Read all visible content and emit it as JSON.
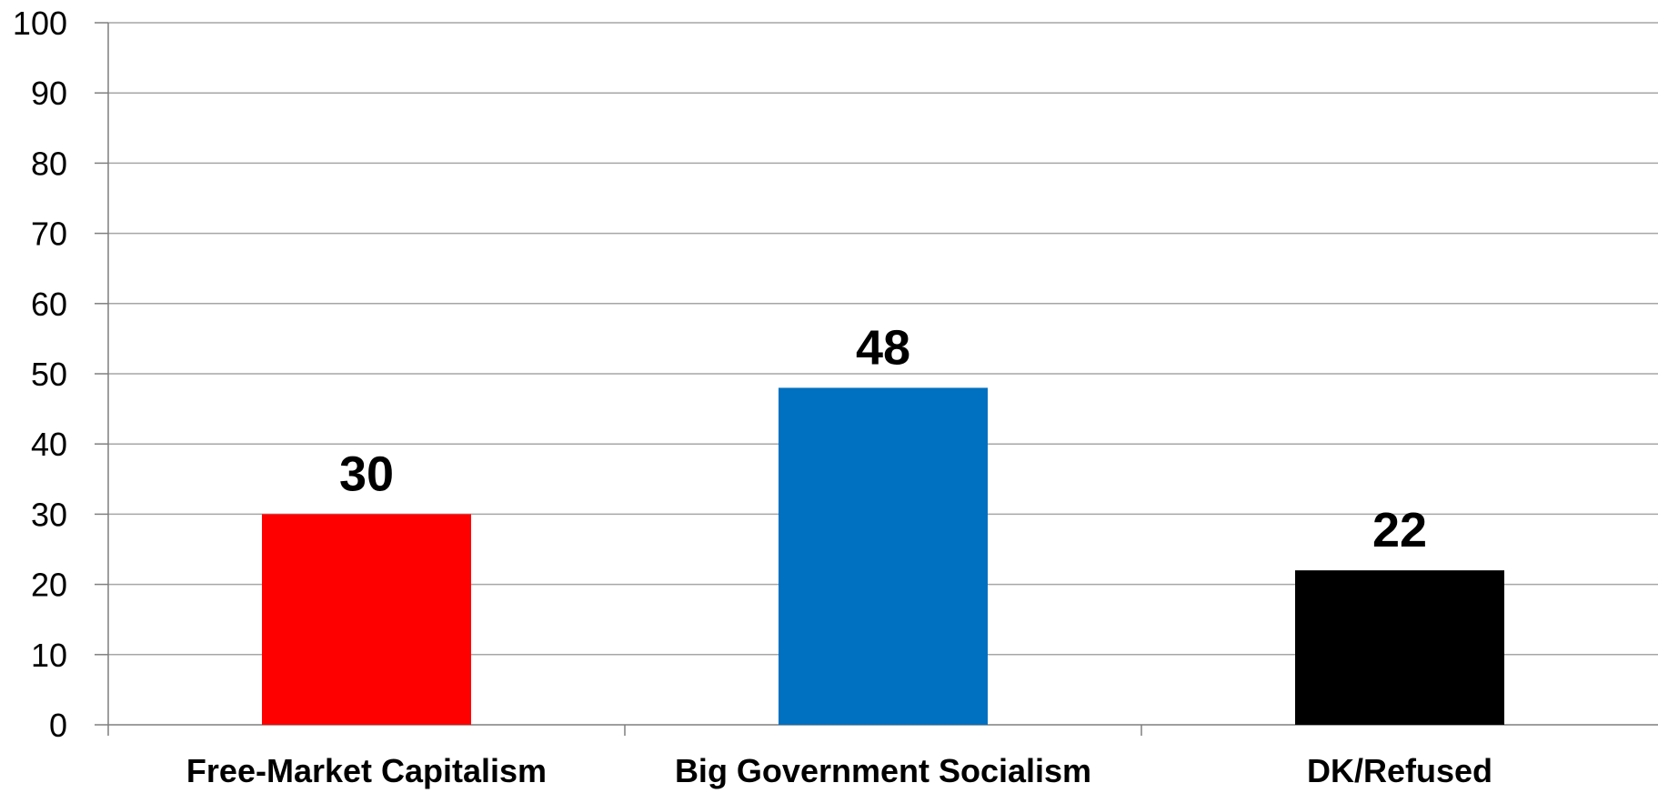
{
  "chart_data": {
    "type": "bar",
    "title": "",
    "xlabel": "",
    "ylabel": "",
    "categories": [
      "Free-Market Capitalism",
      "Big Government Socialism",
      "DK/Refused"
    ],
    "values": [
      30,
      48,
      22
    ],
    "data_labels": [
      "30",
      "48",
      "22"
    ],
    "colors": [
      "#ff0000",
      "#0070c0",
      "#000000"
    ],
    "ylim": [
      0,
      100
    ],
    "yticks": [
      "0",
      "10",
      "20",
      "30",
      "40",
      "50",
      "60",
      "70",
      "80",
      "90",
      "100"
    ],
    "grid": "horizontal",
    "legend": "none"
  }
}
